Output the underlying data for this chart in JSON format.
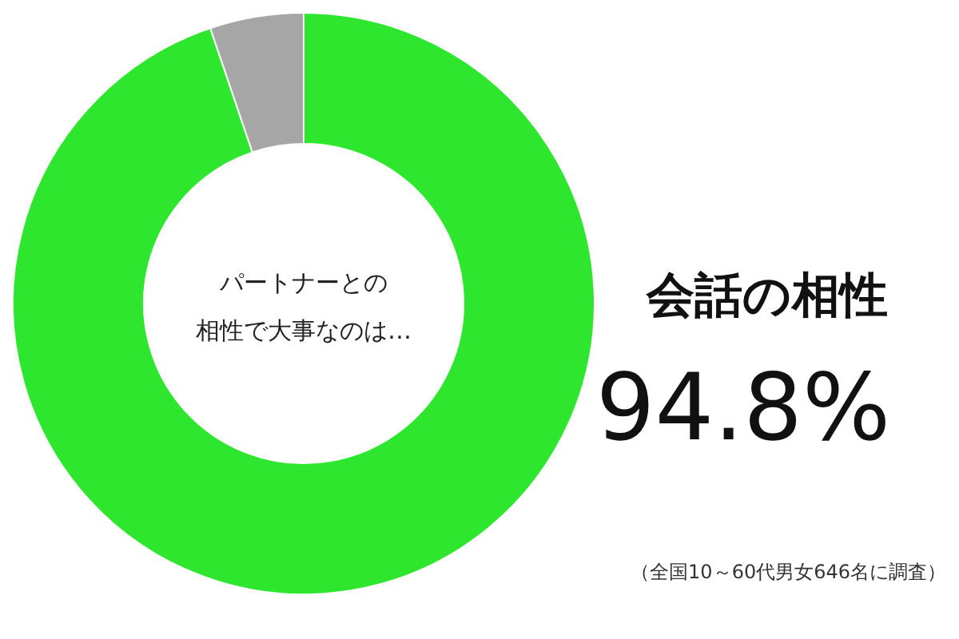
{
  "chart_data": {
    "type": "donut",
    "title": "パートナーとの相性で大事なのは…",
    "categories": [
      "会話の相性",
      null
    ],
    "values": [
      94.8,
      5.2
    ],
    "colors": [
      "#2ee62e",
      "#a6a6a6"
    ],
    "value_labels": [
      "94.8%",
      null
    ],
    "annotations": [
      "（全国10～60代男女646名に調査）"
    ]
  }
}
